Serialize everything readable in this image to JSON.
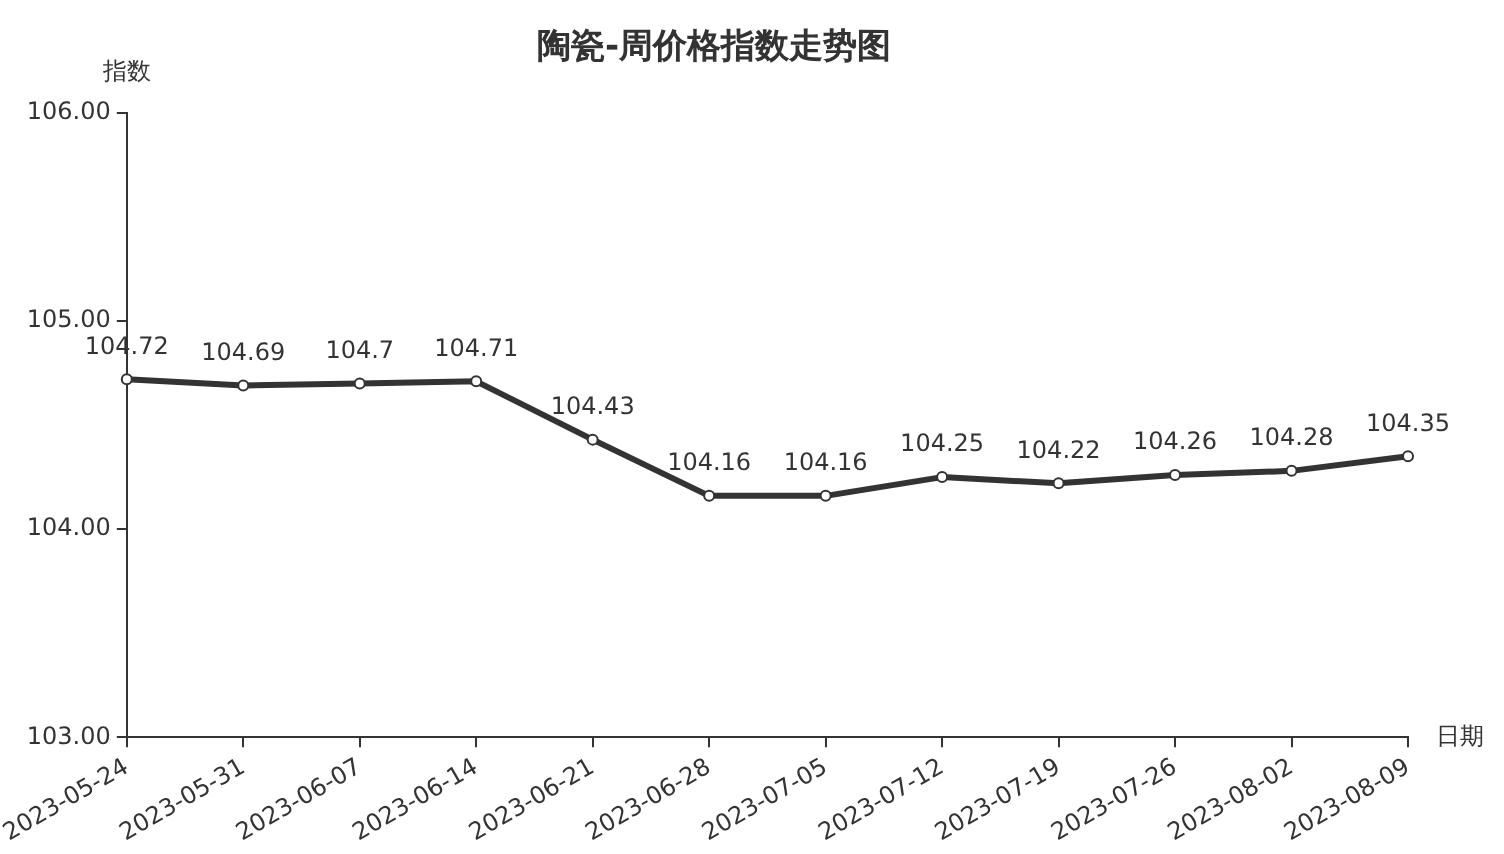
{
  "chart_data": {
    "type": "line",
    "title": "陶瓷-周价格指数走势图",
    "xlabel": "日期",
    "ylabel": "指数",
    "categories": [
      "2023-05-24",
      "2023-05-31",
      "2023-06-07",
      "2023-06-14",
      "2023-06-21",
      "2023-06-28",
      "2023-07-05",
      "2023-07-12",
      "2023-07-19",
      "2023-07-26",
      "2023-08-02",
      "2023-08-09"
    ],
    "series": [
      {
        "color": "#333333",
        "values": [
          104.72,
          104.69,
          104.7,
          104.71,
          104.43,
          104.16,
          104.16,
          104.25,
          104.22,
          104.26,
          104.28,
          104.35
        ]
      }
    ],
    "ylim": [
      103,
      106
    ],
    "yticks": [
      {
        "value": 103,
        "label": "103.00"
      },
      {
        "value": 104,
        "label": "104.00"
      },
      {
        "value": 105,
        "label": "105.00"
      },
      {
        "value": 106,
        "label": "106.00"
      }
    ],
    "grid": false,
    "legend": false,
    "marker": "circle",
    "line_style": "solid",
    "data_labels": true
  }
}
